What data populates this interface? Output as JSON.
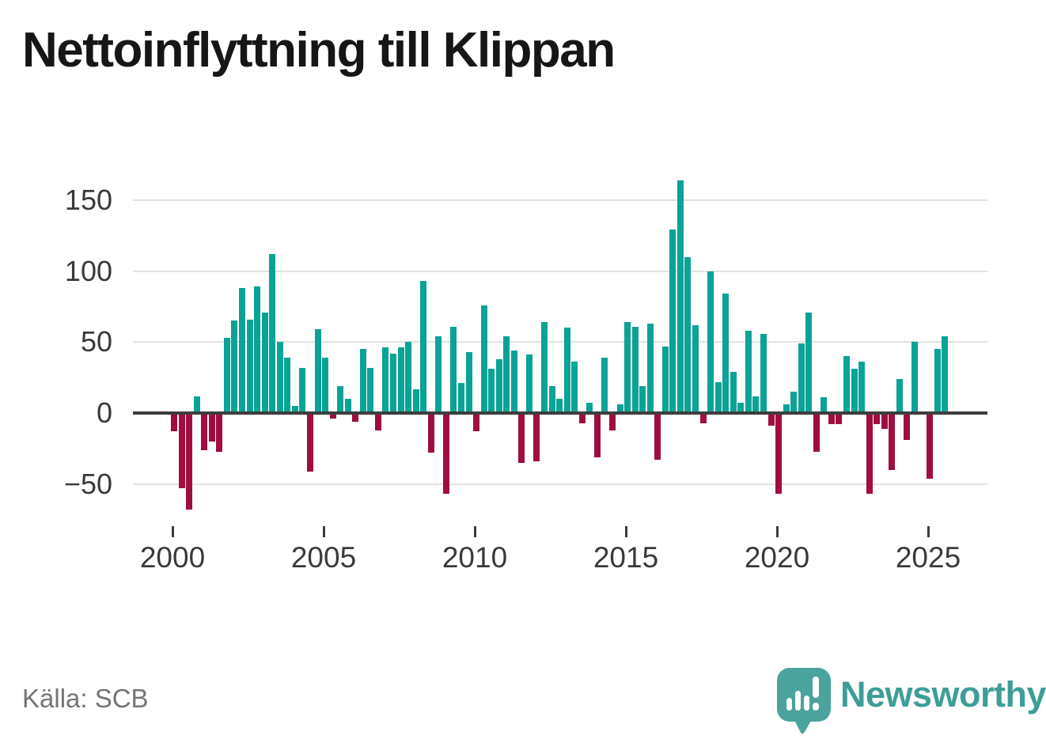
{
  "title": "Nettoinflyttning till Klippan",
  "source_label": "Källa: SCB",
  "brand": {
    "name": "Newsworthy",
    "icon": "newsworthy-speech-bubble-chart-icon",
    "icon_color": "#4aa39c",
    "text_color": "#3d9e97"
  },
  "colors": {
    "positive": "#0aa396",
    "negative": "#a00d40",
    "grid": "#e2e2e2",
    "axis": "#3d3d3d",
    "tick_text": "#3a3a3a",
    "title_text": "#161616",
    "source_text": "#757575"
  },
  "chart_data": {
    "type": "bar",
    "title": "Nettoinflyttning till Klippan",
    "x_start": "2000-Q1",
    "frequency": "quarterly",
    "values": [
      -13,
      -53,
      -68,
      12,
      -26,
      -20,
      -27,
      53,
      65,
      88,
      66,
      89,
      71,
      112,
      50,
      39,
      5,
      32,
      -41,
      59,
      39,
      -4,
      19,
      10,
      -6,
      45,
      32,
      -12,
      46,
      42,
      46,
      50,
      17,
      93,
      -28,
      54,
      -57,
      61,
      21,
      43,
      -13,
      76,
      31,
      38,
      54,
      44,
      -35,
      41,
      -34,
      64,
      19,
      10,
      60,
      36,
      -7,
      7,
      -31,
      39,
      -12,
      6,
      64,
      61,
      19,
      63,
      -33,
      47,
      129,
      164,
      110,
      62,
      -7,
      100,
      22,
      84,
      29,
      7,
      58,
      12,
      56,
      -9,
      -57,
      6,
      15,
      49,
      71,
      -27,
      11,
      -8,
      -8,
      40,
      31,
      36,
      -57,
      -8,
      -11,
      -40,
      24,
      -19,
      50,
      0,
      -46,
      45,
      54
    ],
    "x_tick_years": [
      2000,
      2005,
      2010,
      2015,
      2020,
      2025
    ],
    "x_tick_labels": [
      "2000",
      "2005",
      "2010",
      "2015",
      "2020",
      "2025"
    ],
    "y_ticks": [
      -50,
      0,
      50,
      100,
      150
    ],
    "y_tick_labels": [
      "−50",
      "0",
      "50",
      "100",
      "150"
    ],
    "ylim": [
      -70,
      170
    ],
    "grid": true,
    "legend": false
  }
}
